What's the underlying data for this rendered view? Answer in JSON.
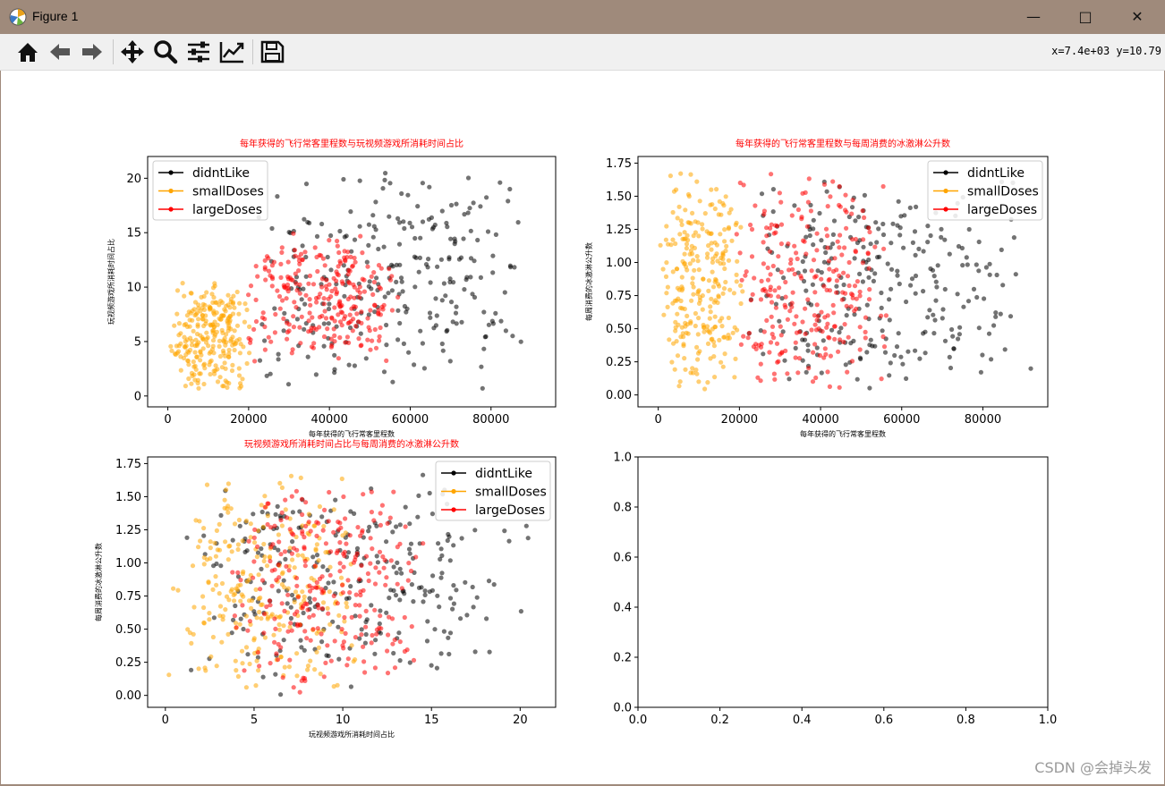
{
  "window": {
    "title": "Figure 1",
    "minimize": "—",
    "maximize": "□",
    "close": "✕"
  },
  "toolbar": {
    "buttons": [
      "home-icon",
      "back-icon",
      "forward-icon",
      "pan-icon",
      "zoom-icon",
      "configure-subplots-icon",
      "edit-axes-icon",
      "save-icon"
    ],
    "coords": "x=7.4e+03 y=10.79"
  },
  "colors": {
    "didntLike": "#000000",
    "smallDoses": "#ffa500",
    "largeDoses": "#ff0000",
    "title": "#ff0000"
  },
  "watermark": "CSDN @会掉头发",
  "chart_data": [
    {
      "type": "scatter",
      "title": "每年获得的飞行常客里程数与玩视频游戏所消耗时间占比",
      "xlabel": "每年获得的飞行常客里程数",
      "ylabel": "玩视频游戏所消耗时间占比",
      "xlim": [
        -5000,
        96000
      ],
      "ylim": [
        -1,
        22
      ],
      "xticks": [
        0,
        20000,
        40000,
        60000,
        80000
      ],
      "yticks": [
        0,
        5,
        10,
        15,
        20
      ],
      "legend": {
        "position": "top-left",
        "entries": [
          "didntLike",
          "smallDoses",
          "largeDoses"
        ]
      },
      "series": [
        {
          "name": "didntLike",
          "cluster": {
            "x": [
              20000,
              92000
            ],
            "y": [
              0,
              21
            ]
          }
        },
        {
          "name": "smallDoses",
          "cluster": {
            "x": [
              0,
              21000
            ],
            "y": [
              0,
              11
            ]
          }
        },
        {
          "name": "largeDoses",
          "cluster": {
            "x": [
              18000,
              58000
            ],
            "y": [
              3,
              15
            ]
          }
        }
      ]
    },
    {
      "type": "scatter",
      "title": "每年获得的飞行常客里程数与每周消费的冰激淋公升数",
      "xlabel": "每年获得的飞行常客里程数",
      "ylabel": "每周消费的冰激淋公升数",
      "xlim": [
        -5000,
        96000
      ],
      "ylim": [
        -0.09,
        1.8
      ],
      "xticks": [
        0,
        20000,
        40000,
        60000,
        80000
      ],
      "yticks": [
        0.0,
        0.25,
        0.5,
        0.75,
        1.0,
        1.25,
        1.5,
        1.75
      ],
      "legend": {
        "position": "top-right",
        "entries": [
          "didntLike",
          "smallDoses",
          "largeDoses"
        ]
      },
      "series": [
        {
          "name": "didntLike",
          "cluster": {
            "x": [
              20000,
              92000
            ],
            "y": [
              0,
              1.7
            ]
          }
        },
        {
          "name": "smallDoses",
          "cluster": {
            "x": [
              0,
              21000
            ],
            "y": [
              0,
              1.7
            ]
          }
        },
        {
          "name": "largeDoses",
          "cluster": {
            "x": [
              18000,
              58000
            ],
            "y": [
              0,
              1.7
            ]
          }
        }
      ]
    },
    {
      "type": "scatter",
      "title": "玩视频游戏所消耗时间占比与每周消费的冰激淋公升数",
      "xlabel": "玩视频游戏所消耗时间占比",
      "ylabel": "每周消费的冰激淋公升数",
      "xlim": [
        -1,
        22
      ],
      "ylim": [
        -0.09,
        1.8
      ],
      "xticks": [
        0,
        5,
        10,
        15,
        20
      ],
      "yticks": [
        0.0,
        0.25,
        0.5,
        0.75,
        1.0,
        1.25,
        1.5,
        1.75
      ],
      "legend": {
        "position": "top-right",
        "entries": [
          "didntLike",
          "smallDoses",
          "largeDoses"
        ]
      },
      "series": [
        {
          "name": "didntLike",
          "cluster": {
            "x": [
              0,
              21
            ],
            "y": [
              0,
              1.7
            ]
          }
        },
        {
          "name": "smallDoses",
          "cluster": {
            "x": [
              0,
              11
            ],
            "y": [
              0,
              1.7
            ]
          }
        },
        {
          "name": "largeDoses",
          "cluster": {
            "x": [
              3,
              15
            ],
            "y": [
              0,
              1.7
            ]
          }
        }
      ]
    },
    {
      "type": "scatter",
      "title": "",
      "xlabel": "",
      "ylabel": "",
      "xlim": [
        0,
        1
      ],
      "ylim": [
        0,
        1
      ],
      "xticks": [
        0.0,
        0.2,
        0.4,
        0.6,
        0.8,
        1.0
      ],
      "yticks": [
        0.0,
        0.2,
        0.4,
        0.6,
        0.8,
        1.0
      ],
      "series": []
    }
  ]
}
